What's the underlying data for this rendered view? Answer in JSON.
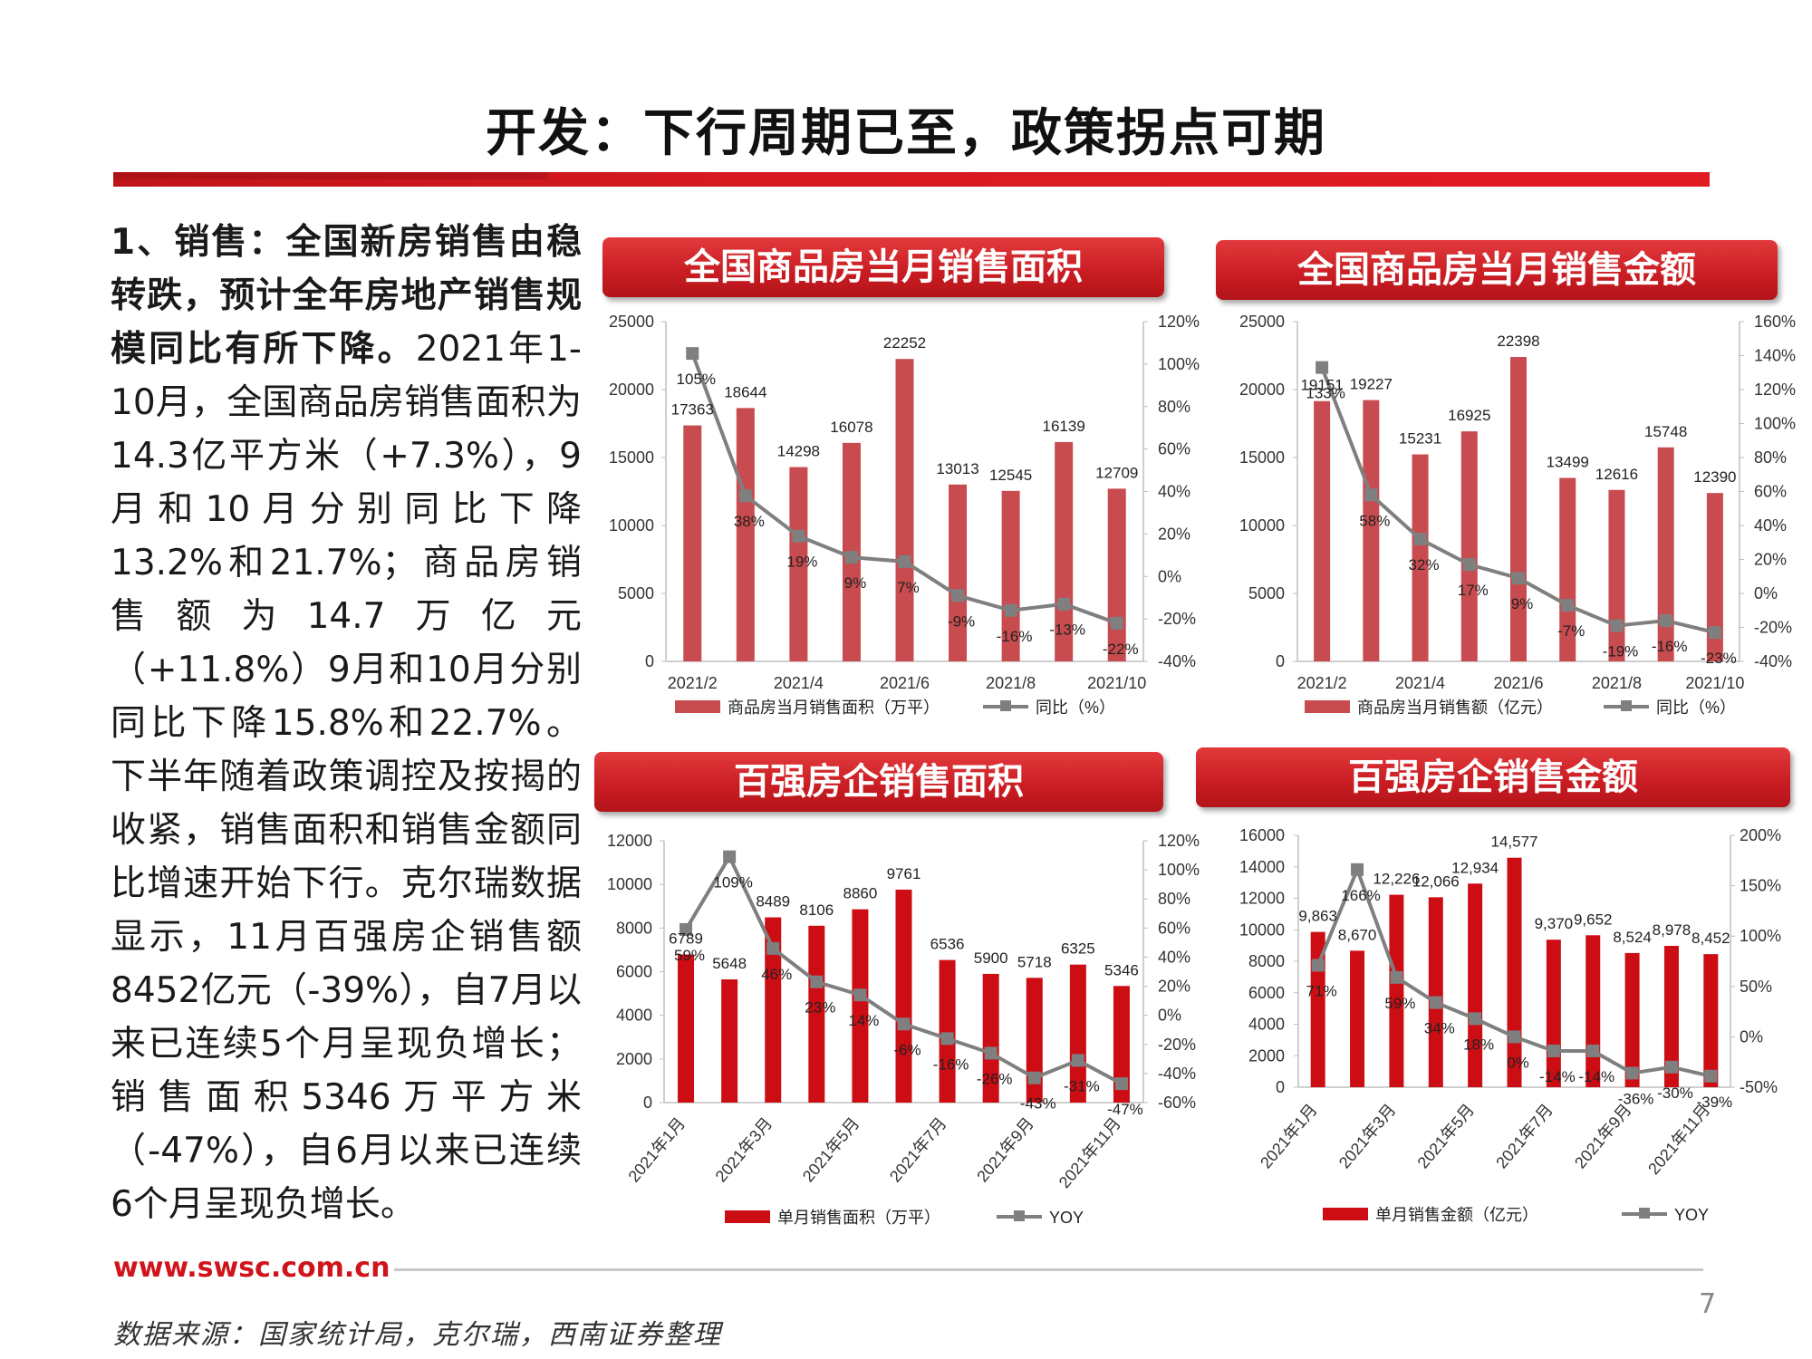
{
  "title": "开发：下行周期已至，政策拐点可期",
  "left": {
    "bold": "1、销售：全国新房销售由稳转跌，预计全年房地产销售规模同比有所下降。",
    "body": "2021年1-10月，全国商品房销售面积为14.3亿平方米（+7.3%），9月和10月分别同比下降13.2%和21.7%；商品房销售额为14.7万亿元（+11.8%）9月和10月分别同比下降15.8%和22.7%。下半年随着政策调控及按揭的收紧，销售面积和销售金额同比增速开始下行。克尔瑞数据显示，11月百强房企销售额8452亿元（-39%），自7月以来已连续5个月呈现负增长；销售面积5346万平方米（-47%），自6月以来已连续6个月呈现负增长。"
  },
  "footer": {
    "url": "www.swsc.com.cn",
    "page": "7",
    "source": "数据来源：国家统计局，克尔瑞，西南证券整理"
  },
  "colors": {
    "bar": "#c84b4f",
    "bar2": "#cc0d14",
    "line": "#7f7f7f",
    "accent": "#d0141b"
  },
  "chart_data": [
    {
      "type": "bar",
      "title": "全国商品房当月销售面积",
      "categories": [
        "2021/2",
        "2021/3",
        "2021/4",
        "2021/5",
        "2021/6",
        "2021/7",
        "2021/8",
        "2021/9",
        "2021/10"
      ],
      "x_tick_labels": [
        "2021/2",
        "2021/4",
        "2021/6",
        "2021/8",
        "2021/10"
      ],
      "series": [
        {
          "name": "商品房当月销售面积（万平）",
          "axis": "left",
          "values": [
            17363,
            18644,
            14298,
            16078,
            22252,
            13013,
            12545,
            16139,
            12709
          ],
          "labels": [
            "17363",
            "18644",
            "14298",
            "16078",
            "22252",
            "13013",
            "12545",
            "16139",
            "12709"
          ]
        },
        {
          "name": "同比（%）",
          "axis": "right",
          "type": "line",
          "values": [
            105,
            38,
            19,
            9,
            7,
            -9,
            -16,
            -13,
            -22
          ],
          "labels": [
            "105%",
            "38%",
            "19%",
            "9%",
            "7%",
            "-9%",
            "-16%",
            "-13%",
            "-22%"
          ]
        }
      ],
      "ylim_left": [
        0,
        25000
      ],
      "ylim_right": [
        -40,
        120
      ],
      "yticks_left": [
        "25000",
        "20000",
        "15000",
        "10000",
        "5000",
        "0"
      ],
      "yticks_right": [
        "120%",
        "100%",
        "80%",
        "60%",
        "40%",
        "20%",
        "0%",
        "-20%",
        "-40%"
      ]
    },
    {
      "type": "bar",
      "title": "全国商品房当月销售金额",
      "categories": [
        "2021/2",
        "2021/3",
        "2021/4",
        "2021/5",
        "2021/6",
        "2021/7",
        "2021/8",
        "2021/9",
        "2021/10"
      ],
      "x_tick_labels": [
        "2021/2",
        "2021/4",
        "2021/6",
        "2021/8",
        "2021/10"
      ],
      "series": [
        {
          "name": "商品房当月销售额（亿元）",
          "axis": "left",
          "values": [
            19151,
            19227,
            15231,
            16925,
            22398,
            13499,
            12616,
            15748,
            12390
          ],
          "labels": [
            "19151",
            "19227",
            "15231",
            "16925",
            "22398",
            "13499",
            "12616",
            "15748",
            "12390"
          ]
        },
        {
          "name": "同比（%）",
          "axis": "right",
          "type": "line",
          "values": [
            133,
            58,
            32,
            17,
            9,
            -7,
            -19,
            -16,
            -23
          ],
          "labels": [
            "133%",
            "58%",
            "32%",
            "17%",
            "9%",
            "-7%",
            "-19%",
            "-16%",
            "-23%"
          ]
        }
      ],
      "ylim_left": [
        0,
        25000
      ],
      "ylim_right": [
        -40,
        160
      ],
      "yticks_left": [
        "25000",
        "20000",
        "15000",
        "10000",
        "5000",
        "0"
      ],
      "yticks_right": [
        "160%",
        "140%",
        "120%",
        "100%",
        "80%",
        "60%",
        "40%",
        "20%",
        "0%",
        "-20%",
        "-40%"
      ]
    },
    {
      "type": "bar",
      "title": "百强房企销售面积",
      "categories": [
        "2021年1月",
        "2021年2月",
        "2021年3月",
        "2021年4月",
        "2021年5月",
        "2021年6月",
        "2021年7月",
        "2021年8月",
        "2021年9月",
        "2021年10月",
        "2021年11月"
      ],
      "x_tick_labels": [
        "2021年1月",
        "2021年3月",
        "2021年5月",
        "2021年7月",
        "2021年9月",
        "2021年11月"
      ],
      "series": [
        {
          "name": "单月销售面积（万平）",
          "axis": "left",
          "values": [
            6789,
            5648,
            8489,
            8106,
            8860,
            9761,
            6536,
            5900,
            5718,
            6325,
            5346
          ],
          "labels": [
            "6789",
            "5648",
            "8489",
            "8106",
            "8860",
            "9761",
            "6536",
            "5900",
            "5718",
            "6325",
            "5346"
          ]
        },
        {
          "name": "YOY",
          "axis": "right",
          "type": "line",
          "values": [
            59,
            109,
            46,
            23,
            14,
            -6,
            -16,
            -26,
            -43,
            -31,
            -47
          ],
          "labels": [
            "59%",
            "109%",
            "46%",
            "23%",
            "14%",
            "-6%",
            "-16%",
            "-26%",
            "-43%",
            "-31%",
            "-47%"
          ]
        }
      ],
      "ylim_left": [
        0,
        12000
      ],
      "ylim_right": [
        -60,
        120
      ],
      "yticks_left": [
        "12000",
        "10000",
        "8000",
        "6000",
        "4000",
        "2000",
        "0"
      ],
      "yticks_right": [
        "120%",
        "100%",
        "80%",
        "60%",
        "40%",
        "20%",
        "0%",
        "-20%",
        "-40%",
        "-60%"
      ]
    },
    {
      "type": "bar",
      "title": "百强房企销售金额",
      "categories": [
        "2021年1月",
        "2021年2月",
        "2021年3月",
        "2021年4月",
        "2021年5月",
        "2021年6月",
        "2021年7月",
        "2021年8月",
        "2021年9月",
        "2021年10月",
        "2021年11月"
      ],
      "x_tick_labels": [
        "2021年1月",
        "2021年3月",
        "2021年5月",
        "2021年7月",
        "2021年9月",
        "2021年11月"
      ],
      "series": [
        {
          "name": "单月销售金额（亿元）",
          "axis": "left",
          "values": [
            9863,
            8670,
            12226,
            12066,
            12934,
            14577,
            9370,
            9652,
            8524,
            8978,
            8452
          ],
          "labels": [
            "9,863",
            "8,670",
            "12,226",
            "12,066",
            "12,934",
            "14,577",
            "9,370",
            "9,652",
            "8,524",
            "8,978",
            "8,452"
          ]
        },
        {
          "name": "YOY",
          "axis": "right",
          "type": "line",
          "values": [
            71,
            166,
            59,
            34,
            18,
            0,
            -14,
            -14,
            -36,
            -30,
            -39
          ],
          "labels": [
            "71%",
            "166%",
            "59%",
            "34%",
            "18%",
            "0%",
            "-14%",
            "-14%",
            "-36%",
            "-30%",
            "-39%"
          ]
        }
      ],
      "ylim_left": [
        0,
        16000
      ],
      "ylim_right": [
        -50,
        200
      ],
      "yticks_left": [
        "16000",
        "14000",
        "12000",
        "10000",
        "8000",
        "6000",
        "4000",
        "2000",
        "0"
      ],
      "yticks_right": [
        "200%",
        "150%",
        "100%",
        "50%",
        "0%",
        "-50%"
      ]
    }
  ]
}
